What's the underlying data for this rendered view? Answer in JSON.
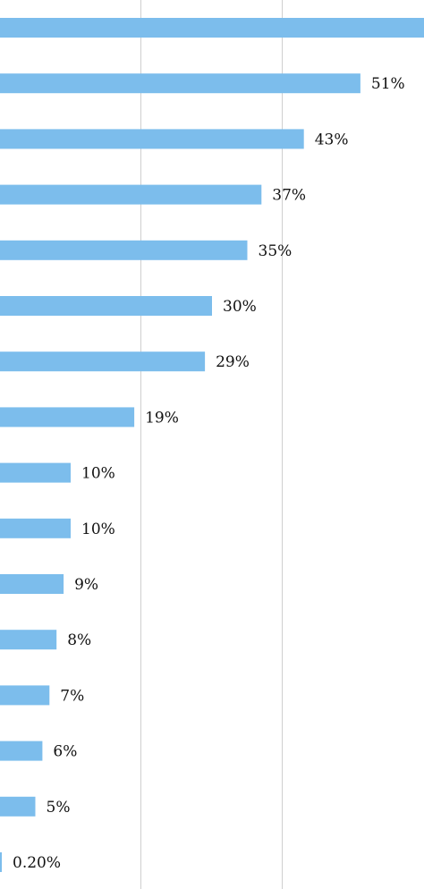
{
  "chart_data": {
    "type": "bar",
    "orientation": "horizontal",
    "bar_color": "#7cbdec",
    "gridline_color": "#cfcfcf",
    "grid": true,
    "xlim": [
      0,
      60
    ],
    "gridlines_at": [
      20,
      40
    ],
    "values": [
      60,
      51,
      43,
      37,
      35,
      30,
      29,
      19,
      10,
      10,
      9,
      8,
      7,
      6,
      5,
      0.2
    ],
    "labels": [
      "",
      "51%",
      "43%",
      "37%",
      "35%",
      "30%",
      "29%",
      "19%",
      "10%",
      "10%",
      "9%",
      "8%",
      "7%",
      "6%",
      "5%",
      "0.20%"
    ]
  }
}
